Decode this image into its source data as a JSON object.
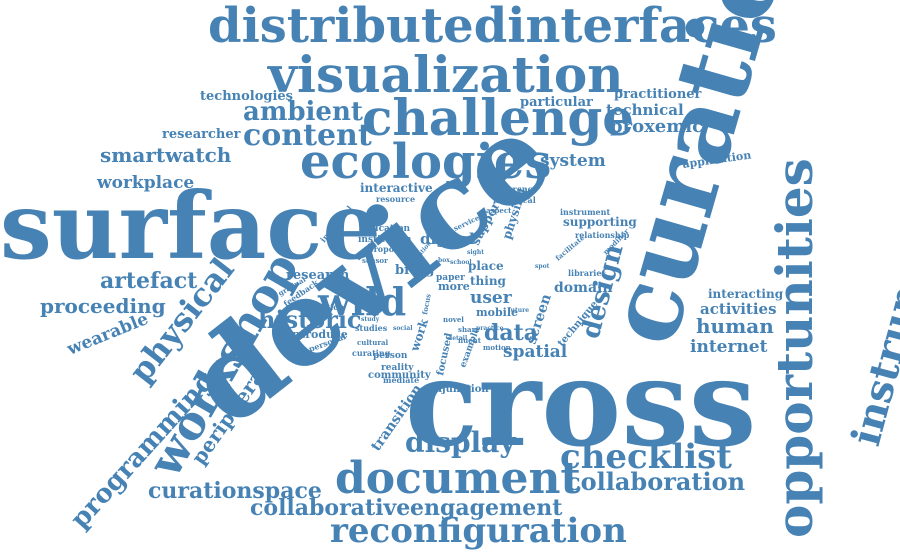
{
  "colors": {
    "word": "#4682b4",
    "background": "#ffffff"
  },
  "words": [
    {
      "text": "surface",
      "key": "surface",
      "weight": 1.0
    },
    {
      "text": "device",
      "key": "device",
      "weight": 1.0
    },
    {
      "text": "cross",
      "key": "cross",
      "weight": 0.95
    },
    {
      "text": "curation",
      "key": "curation",
      "weight": 0.92
    },
    {
      "text": "opportunities",
      "key": "opportunities",
      "weight": 0.7
    },
    {
      "text": "distributedinterfaces",
      "key": "distributedinterfaces",
      "weight": 0.6
    },
    {
      "text": "visualization",
      "key": "visualization",
      "weight": 0.6
    },
    {
      "text": "challenge",
      "key": "challenge",
      "weight": 0.6
    },
    {
      "text": "ecologies",
      "key": "ecologies",
      "weight": 0.6
    },
    {
      "text": "instrumental",
      "key": "instrumental",
      "weight": 0.55
    },
    {
      "text": "workshop",
      "key": "workshop",
      "weight": 0.55
    },
    {
      "text": "document",
      "key": "document",
      "weight": 0.5
    },
    {
      "text": "reconfiguration",
      "key": "reconfiguration",
      "weight": 0.45
    },
    {
      "text": "checklist",
      "key": "checklist",
      "weight": 0.45
    },
    {
      "text": "display",
      "key": "display",
      "weight": 0.42
    },
    {
      "text": "physical",
      "key": "physical",
      "weight": 0.4
    },
    {
      "text": "wild",
      "key": "wild",
      "weight": 0.4
    },
    {
      "text": "content",
      "key": "content",
      "weight": 0.4
    },
    {
      "text": "ambient",
      "key": "ambient",
      "weight": 0.35
    },
    {
      "text": "historic",
      "key": "historic",
      "weight": 0.35
    },
    {
      "text": "design",
      "key": "design",
      "weight": 0.35
    },
    {
      "text": "programming",
      "key": "programming",
      "weight": 0.33
    },
    {
      "text": "collaboration",
      "key": "collaboration",
      "weight": 0.32
    },
    {
      "text": "curationspace",
      "key": "curationspace",
      "weight": 0.3
    },
    {
      "text": "engagement",
      "key": "engagement",
      "weight": 0.3
    },
    {
      "text": "collaborative",
      "key": "collaborative",
      "weight": 0.3
    },
    {
      "text": "peripheral",
      "key": "peripheral",
      "weight": 0.3
    },
    {
      "text": "artefact",
      "key": "artefact",
      "weight": 0.3
    },
    {
      "text": "proceeding",
      "key": "proceeding",
      "weight": 0.28
    },
    {
      "text": "smartwatch",
      "key": "smartwatch",
      "weight": 0.28
    },
    {
      "text": "human",
      "key": "human",
      "weight": 0.28
    },
    {
      "text": "proxemic",
      "key": "proxemic",
      "weight": 0.26
    },
    {
      "text": "data",
      "key": "data",
      "weight": 0.28
    },
    {
      "text": "workplace",
      "key": "workplace",
      "weight": 0.24
    },
    {
      "text": "wearable",
      "key": "wearable",
      "weight": 0.24
    },
    {
      "text": "system",
      "key": "system",
      "weight": 0.24
    },
    {
      "text": "spatial",
      "key": "spatial",
      "weight": 0.24
    },
    {
      "text": "internet",
      "key": "internet",
      "weight": 0.24
    },
    {
      "text": "activities",
      "key": "activities",
      "weight": 0.22
    },
    {
      "text": "digital",
      "key": "digital",
      "weight": 0.22
    },
    {
      "text": "user",
      "key": "user",
      "weight": 0.22
    },
    {
      "text": "technical",
      "key": "technical",
      "weight": 0.2
    },
    {
      "text": "researcher",
      "key": "researcher",
      "weight": 0.2
    },
    {
      "text": "technologies",
      "key": "technologies",
      "weight": 0.2
    },
    {
      "text": "practitioner",
      "key": "practitioner",
      "weight": 0.2
    },
    {
      "text": "particular",
      "key": "particular",
      "weight": 0.2
    },
    {
      "text": "domain",
      "key": "domain",
      "weight": 0.2
    },
    {
      "text": "screen",
      "key": "screen",
      "weight": 0.2
    },
    {
      "text": "transition",
      "key": "transition",
      "weight": 0.2
    },
    {
      "text": "research",
      "key": "research",
      "weight": 0.2
    },
    {
      "text": "interactive",
      "key": "interactive",
      "weight": 0.16
    },
    {
      "text": "supporting",
      "key": "supporting",
      "weight": 0.16
    },
    {
      "text": "interacting",
      "key": "interacting",
      "weight": 0.16
    },
    {
      "text": "application",
      "key": "application",
      "weight": 0.15
    },
    {
      "text": "introduce",
      "key": "introduce",
      "weight": 0.15
    },
    {
      "text": "bring",
      "key": "bring",
      "weight": 0.15
    },
    {
      "text": "place",
      "key": "place",
      "weight": 0.15
    },
    {
      "text": "thing",
      "key": "thing",
      "weight": 0.15
    },
    {
      "text": "work",
      "key": "work",
      "weight": 0.15
    },
    {
      "text": "support",
      "key": "support",
      "weight": 0.15
    },
    {
      "text": "physikit",
      "key": "physikit",
      "weight": 0.15
    },
    {
      "text": "community",
      "key": "community",
      "weight": 0.13
    },
    {
      "text": "conjunction",
      "key": "conjunction",
      "weight": 0.13
    },
    {
      "text": "more",
      "key": "more",
      "weight": 0.13
    },
    {
      "text": "mobile",
      "key": "mobile",
      "weight": 0.13
    },
    {
      "text": "education",
      "key": "education",
      "weight": 0.11
    },
    {
      "text": "institution",
      "key": "institution",
      "weight": 0.11
    },
    {
      "text": "relationship",
      "key": "relationship",
      "weight": 0.11
    },
    {
      "text": "instrument",
      "key": "instrument",
      "weight": 0.11
    },
    {
      "text": "conference",
      "key": "conference",
      "weight": 0.11
    },
    {
      "text": "resource",
      "key": "resource",
      "weight": 0.1
    },
    {
      "text": "paper",
      "key": "paper",
      "weight": 0.11
    },
    {
      "text": "person",
      "key": "person",
      "weight": 0.11
    },
    {
      "text": "reality",
      "key": "reality",
      "weight": 0.11
    },
    {
      "text": "technique",
      "key": "technique",
      "weight": 0.11
    },
    {
      "text": "focused",
      "key": "focused",
      "weight": 0.11
    },
    {
      "text": "example",
      "key": "example",
      "weight": 0.1
    },
    {
      "text": "libraries",
      "key": "libraries",
      "weight": 0.1
    },
    {
      "text": "historical",
      "key": "historical",
      "weight": 0.1
    },
    {
      "text": "individual",
      "key": "individual",
      "weight": 0.1
    },
    {
      "text": "feedback",
      "key": "feedback",
      "weight": 0.09
    },
    {
      "text": "attention",
      "key": "attention",
      "weight": 0.09
    },
    {
      "text": "personal",
      "key": "personal",
      "weight": 0.09
    },
    {
      "text": "curating",
      "key": "curating",
      "weight": 0.09
    },
    {
      "text": "mediate",
      "key": "mediate",
      "weight": 0.09
    },
    {
      "text": "studies",
      "key": "studies",
      "weight": 0.09
    },
    {
      "text": "proposal",
      "key": "proposal",
      "weight": 0.09
    },
    {
      "text": "sensor",
      "key": "sensor",
      "weight": 0.08
    },
    {
      "text": "service",
      "key": "service",
      "weight": 0.08
    },
    {
      "text": "facilitate",
      "key": "facilitate",
      "weight": 0.08
    },
    {
      "text": "cultural",
      "key": "cultural",
      "weight": 0.08
    },
    {
      "text": "gradual",
      "key": "gradual",
      "weight": 0.08
    },
    {
      "text": "share",
      "key": "share",
      "weight": 0.08
    },
    {
      "text": "fluent",
      "key": "fluent",
      "weight": 0.08
    },
    {
      "text": "aspect",
      "key": "aspect",
      "weight": 0.08
    },
    {
      "text": "school",
      "key": "school",
      "weight": 0.07
    },
    {
      "text": "novel",
      "key": "novel",
      "weight": 0.07
    },
    {
      "text": "modifier",
      "key": "modifier",
      "weight": 0.07
    },
    {
      "text": "practice",
      "key": "practice",
      "weight": 0.07
    },
    {
      "text": "future",
      "key": "future",
      "weight": 0.07
    },
    {
      "text": "motion",
      "key": "motion",
      "weight": 0.07
    },
    {
      "text": "focus",
      "key": "focus",
      "weight": 0.07
    },
    {
      "text": "detail",
      "key": "detail",
      "weight": 0.07
    },
    {
      "text": "social",
      "key": "social",
      "weight": 0.07
    },
    {
      "text": "study",
      "key": "study",
      "weight": 0.07
    },
    {
      "text": "evaluation",
      "key": "evaluation",
      "weight": 0.07
    },
    {
      "text": "box",
      "key": "box",
      "weight": 0.06
    },
    {
      "text": "spot",
      "key": "spot",
      "weight": 0.06
    },
    {
      "text": "sight",
      "key": "sight",
      "weight": 0.06
    }
  ]
}
